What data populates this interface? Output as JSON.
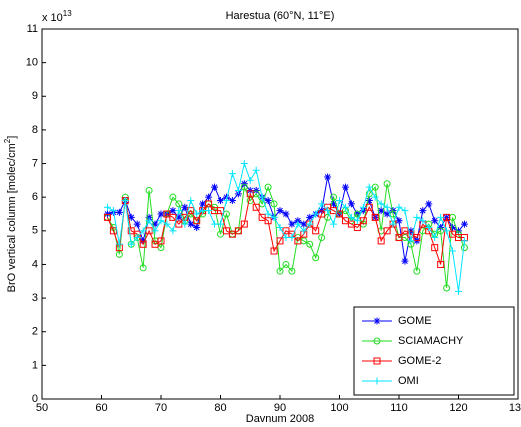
{
  "chart_data": {
    "type": "line",
    "title": "Harestua (60°N, 11°E)",
    "xlabel": "Davnum 2008",
    "ylabel": {
      "text": "BrO vertical column [molec/cm",
      "superscript": "2",
      "suffix": "]"
    },
    "y_scale": {
      "base": "x 10",
      "exponent": "13"
    },
    "xlim": [
      50,
      130
    ],
    "xticks": [
      50,
      60,
      70,
      80,
      90,
      100,
      110,
      120,
      130
    ],
    "ylim": [
      0,
      11
    ],
    "yticks": [
      0,
      1,
      2,
      3,
      4,
      5,
      6,
      7,
      8,
      9,
      10,
      11
    ],
    "grid": false,
    "legend": "lower right",
    "x": [
      61,
      62,
      63,
      64,
      65,
      66,
      67,
      68,
      69,
      70,
      71,
      72,
      73,
      74,
      75,
      76,
      77,
      78,
      79,
      80,
      81,
      82,
      83,
      84,
      85,
      86,
      87,
      88,
      89,
      90,
      91,
      92,
      93,
      94,
      95,
      96,
      97,
      98,
      99,
      100,
      101,
      102,
      103,
      104,
      105,
      106,
      107,
      108,
      109,
      110,
      111,
      112,
      113,
      114,
      115,
      116,
      117,
      118,
      119,
      120,
      121
    ],
    "series": [
      {
        "name": "GOME",
        "color": "#0000ff",
        "marker": "star",
        "values": [
          5.5,
          5.55,
          5.55,
          5.9,
          5.4,
          5.2,
          4.7,
          5.4,
          5.2,
          5.5,
          5.5,
          5.6,
          5.4,
          5.7,
          5.2,
          5.1,
          5.8,
          6.0,
          6.3,
          5.9,
          6.0,
          5.9,
          6.1,
          6.4,
          6.2,
          6.2,
          6.0,
          5.9,
          5.4,
          5.6,
          5.5,
          5.2,
          5.3,
          5.2,
          5.4,
          5.5,
          5.6,
          6.6,
          5.8,
          5.5,
          6.3,
          5.8,
          5.5,
          5.6,
          5.9,
          5.4,
          5.6,
          5.5,
          5.6,
          5.3,
          4.1,
          5.0,
          4.7,
          5.6,
          5.8,
          5.3,
          5.1,
          5.4,
          5.1,
          5.0,
          5.2
        ]
      },
      {
        "name": "SCIAMACHY",
        "color": "#22dd22",
        "marker": "circle",
        "values": [
          5.4,
          5.1,
          4.3,
          6.0,
          4.6,
          4.8,
          3.9,
          6.2,
          4.7,
          4.5,
          5.5,
          6.0,
          5.8,
          5.3,
          5.5,
          5.3,
          5.5,
          5.8,
          5.7,
          4.9,
          5.5,
          4.9,
          5.0,
          6.3,
          5.9,
          6.1,
          5.8,
          6.3,
          5.8,
          3.8,
          4.0,
          3.8,
          4.8,
          4.7,
          4.6,
          4.2,
          4.8,
          5.4,
          6.0,
          5.5,
          5.6,
          5.3,
          5.5,
          5.2,
          6.1,
          6.3,
          5.0,
          6.4,
          5.5,
          4.8,
          4.8,
          4.6,
          3.8,
          5.0,
          5.2,
          4.9,
          5.0,
          3.3,
          5.4,
          4.9,
          4.5
        ]
      },
      {
        "name": "GOME-2",
        "color": "#ff0000",
        "marker": "square",
        "values": [
          5.4,
          5.0,
          4.5,
          5.9,
          5.0,
          4.9,
          4.6,
          5.0,
          4.6,
          4.7,
          5.5,
          5.4,
          5.2,
          5.4,
          5.6,
          5.3,
          5.6,
          5.8,
          5.6,
          5.6,
          5.0,
          4.9,
          5.0,
          5.2,
          6.1,
          5.7,
          5.4,
          5.3,
          4.4,
          4.7,
          5.0,
          4.9,
          4.7,
          4.9,
          5.2,
          5.0,
          5.5,
          5.7,
          5.6,
          5.5,
          5.3,
          5.2,
          5.1,
          5.3,
          5.7,
          5.4,
          4.7,
          5.0,
          5.2,
          4.8,
          5.0,
          4.9,
          4.8,
          5.2,
          5.0,
          4.5,
          4.0,
          5.4,
          4.9,
          4.8,
          4.8
        ]
      },
      {
        "name": "OMI",
        "color": "#00e5ff",
        "marker": "plus",
        "values": [
          5.7,
          5.6,
          4.6,
          5.9,
          4.6,
          4.8,
          5.0,
          5.3,
          5.0,
          5.3,
          5.2,
          5.0,
          5.6,
          5.2,
          5.9,
          5.5,
          5.6,
          5.6,
          5.2,
          5.2,
          5.9,
          6.7,
          6.2,
          7.0,
          6.5,
          6.8,
          6.0,
          5.5,
          5.4,
          5.1,
          4.8,
          4.8,
          5.2,
          5.0,
          5.2,
          5.5,
          5.8,
          5.6,
          5.2,
          5.9,
          5.7,
          5.4,
          5.3,
          5.7,
          6.3,
          6.0,
          5.8,
          5.7,
          5.2,
          5.7,
          5.6,
          4.7,
          5.4,
          5.3,
          5.1,
          4.8,
          5.4,
          5.0,
          4.4,
          3.2,
          4.7
        ]
      }
    ]
  }
}
